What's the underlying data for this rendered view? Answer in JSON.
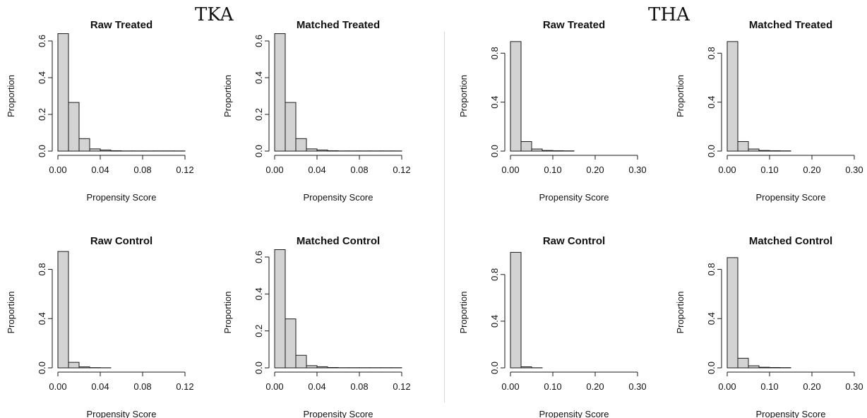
{
  "groups": [
    {
      "label": "TKA"
    },
    {
      "label": "THA"
    }
  ],
  "chart_data": [
    {
      "type": "bar",
      "group": "TKA",
      "title": "Raw Treated",
      "xlabel": "Propensity Score",
      "ylabel": "Proportion",
      "x_ticks": [
        "0.00",
        "0.04",
        "0.08",
        "0.12"
      ],
      "x_tick_values": [
        0,
        0.04,
        0.08,
        0.12
      ],
      "y_ticks": [
        "0.0",
        "0.2",
        "0.4",
        "0.6"
      ],
      "y_tick_values": [
        0,
        0.2,
        0.4,
        0.6
      ],
      "xlim": [
        0,
        0.12
      ],
      "ylim": [
        0,
        0.6
      ],
      "bin_edges": [
        0,
        0.01,
        0.02,
        0.03,
        0.04,
        0.05,
        0.06,
        0.07,
        0.08,
        0.09,
        0.1,
        0.11,
        0.12
      ],
      "values": [
        0.64,
        0.265,
        0.068,
        0.012,
        0.006,
        0.002,
        0.001,
        0.001,
        0.001,
        0.001,
        0.001,
        0.001
      ]
    },
    {
      "type": "bar",
      "group": "TKA",
      "title": "Matched Treated",
      "xlabel": "Propensity Score",
      "ylabel": "Proportion",
      "x_ticks": [
        "0.00",
        "0.04",
        "0.08",
        "0.12"
      ],
      "x_tick_values": [
        0,
        0.04,
        0.08,
        0.12
      ],
      "y_ticks": [
        "0.0",
        "0.2",
        "0.4",
        "0.6"
      ],
      "y_tick_values": [
        0,
        0.2,
        0.4,
        0.6
      ],
      "xlim": [
        0,
        0.12
      ],
      "ylim": [
        0,
        0.6
      ],
      "bin_edges": [
        0,
        0.01,
        0.02,
        0.03,
        0.04,
        0.05,
        0.06,
        0.07,
        0.08,
        0.09,
        0.1,
        0.11,
        0.12
      ],
      "values": [
        0.64,
        0.265,
        0.068,
        0.012,
        0.006,
        0.002,
        0.001,
        0.001,
        0.001,
        0.001,
        0.001,
        0.001
      ]
    },
    {
      "type": "bar",
      "group": "THA",
      "title": "Raw Treated",
      "xlabel": "Propensity Score",
      "ylabel": "Proportion",
      "x_ticks": [
        "0.00",
        "0.10",
        "0.20",
        "0.30"
      ],
      "x_tick_values": [
        0,
        0.1,
        0.2,
        0.3
      ],
      "y_ticks": [
        "0.0",
        "0.4",
        "0.8"
      ],
      "y_tick_values": [
        0,
        0.4,
        0.8
      ],
      "xlim": [
        0,
        0.3
      ],
      "ylim": [
        0,
        0.9
      ],
      "bin_edges": [
        0,
        0.025,
        0.05,
        0.075,
        0.1,
        0.125,
        0.15,
        0.175,
        0.2,
        0.225,
        0.25,
        0.275,
        0.3
      ],
      "values": [
        0.895,
        0.078,
        0.017,
        0.005,
        0.003,
        0.002,
        0,
        0,
        0,
        0,
        0,
        0
      ]
    },
    {
      "type": "bar",
      "group": "THA",
      "title": "Matched Treated",
      "xlabel": "Propensity Score",
      "ylabel": "Proportion",
      "x_ticks": [
        "0.00",
        "0.10",
        "0.20",
        "0.30"
      ],
      "x_tick_values": [
        0,
        0.1,
        0.2,
        0.3
      ],
      "y_ticks": [
        "0.0",
        "0.4",
        "0.8"
      ],
      "y_tick_values": [
        0,
        0.4,
        0.8
      ],
      "xlim": [
        0,
        0.3
      ],
      "ylim": [
        0,
        0.9
      ],
      "bin_edges": [
        0,
        0.025,
        0.05,
        0.075,
        0.1,
        0.125,
        0.15,
        0.175,
        0.2,
        0.225,
        0.25,
        0.275,
        0.3
      ],
      "values": [
        0.895,
        0.078,
        0.017,
        0.005,
        0.003,
        0.002,
        0,
        0,
        0,
        0,
        0,
        0
      ]
    },
    {
      "type": "bar",
      "group": "TKA",
      "title": "Raw Control",
      "xlabel": "Propensity Score",
      "ylabel": "Proportion",
      "x_ticks": [
        "0.00",
        "0.04",
        "0.08",
        "0.12"
      ],
      "x_tick_values": [
        0,
        0.04,
        0.08,
        0.12
      ],
      "y_ticks": [
        "0.0",
        "0.4",
        "0.8"
      ],
      "y_tick_values": [
        0,
        0.4,
        0.8
      ],
      "xlim": [
        0,
        0.12
      ],
      "ylim": [
        0,
        0.9
      ],
      "bin_edges": [
        0,
        0.01,
        0.02,
        0.03,
        0.04,
        0.05,
        0.06,
        0.07,
        0.08,
        0.09,
        0.1,
        0.11,
        0.12
      ],
      "values": [
        0.945,
        0.045,
        0.008,
        0.002,
        0.001,
        0,
        0,
        0,
        0,
        0,
        0,
        0
      ]
    },
    {
      "type": "bar",
      "group": "TKA",
      "title": "Matched Control",
      "xlabel": "Propensity Score",
      "ylabel": "Proportion",
      "x_ticks": [
        "0.00",
        "0.04",
        "0.08",
        "0.12"
      ],
      "x_tick_values": [
        0,
        0.04,
        0.08,
        0.12
      ],
      "y_ticks": [
        "0.0",
        "0.2",
        "0.4",
        "0.6"
      ],
      "y_tick_values": [
        0,
        0.2,
        0.4,
        0.6
      ],
      "xlim": [
        0,
        0.12
      ],
      "ylim": [
        0,
        0.6
      ],
      "bin_edges": [
        0,
        0.01,
        0.02,
        0.03,
        0.04,
        0.05,
        0.06,
        0.07,
        0.08,
        0.09,
        0.1,
        0.11,
        0.12
      ],
      "values": [
        0.64,
        0.265,
        0.068,
        0.012,
        0.006,
        0.002,
        0.001,
        0.001,
        0.001,
        0.001,
        0.001,
        0.001
      ]
    },
    {
      "type": "bar",
      "group": "THA",
      "title": "Raw Control",
      "xlabel": "Propensity Score",
      "ylabel": "Proportion",
      "x_ticks": [
        "0.00",
        "0.10",
        "0.20",
        "0.30"
      ],
      "x_tick_values": [
        0,
        0.1,
        0.2,
        0.3
      ],
      "y_ticks": [
        "0.0",
        "0.4",
        "0.8"
      ],
      "y_tick_values": [
        0,
        0.4,
        0.8
      ],
      "xlim": [
        0,
        0.3
      ],
      "ylim": [
        0,
        0.95
      ],
      "bin_edges": [
        0,
        0.025,
        0.05,
        0.075,
        0.1,
        0.125,
        0.15,
        0.175,
        0.2,
        0.225,
        0.25,
        0.275,
        0.3
      ],
      "values": [
        0.99,
        0.009,
        0.001,
        0,
        0,
        0,
        0,
        0,
        0,
        0,
        0,
        0
      ]
    },
    {
      "type": "bar",
      "group": "THA",
      "title": "Matched Control",
      "xlabel": "Propensity Score",
      "ylabel": "Proportion",
      "x_ticks": [
        "0.00",
        "0.10",
        "0.20",
        "0.30"
      ],
      "x_tick_values": [
        0,
        0.1,
        0.2,
        0.3
      ],
      "y_ticks": [
        "0.0",
        "0.4",
        "0.8"
      ],
      "y_tick_values": [
        0,
        0.4,
        0.8
      ],
      "xlim": [
        0,
        0.3
      ],
      "ylim": [
        0,
        0.9
      ],
      "bin_edges": [
        0,
        0.025,
        0.05,
        0.075,
        0.1,
        0.125,
        0.15,
        0.175,
        0.2,
        0.225,
        0.25,
        0.275,
        0.3
      ],
      "values": [
        0.895,
        0.078,
        0.017,
        0.005,
        0.003,
        0.002,
        0,
        0,
        0,
        0,
        0,
        0
      ]
    }
  ]
}
